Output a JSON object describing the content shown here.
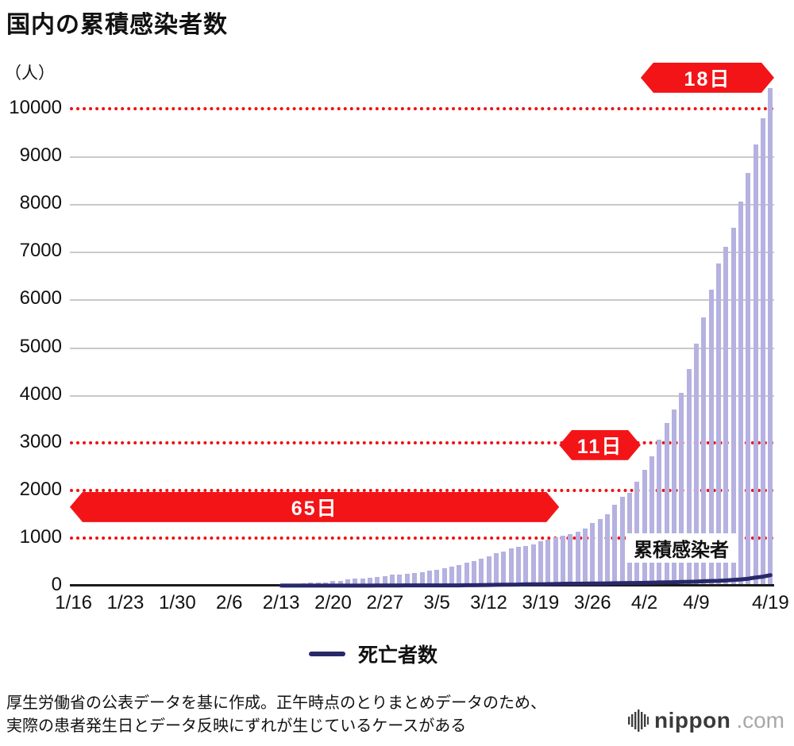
{
  "title": "国内の累積感染者数",
  "y_unit": "（人）",
  "bar_series_label": "累積感染者",
  "legend": {
    "deaths": "死亡者数"
  },
  "footer_lines": [
    "厚生労働省の公表データを基に作成。正午時点のとりまとめデータのため、",
    "実際の患者発生日とデータ反映にずれが生じているケースがある"
  ],
  "logo": {
    "name": "nippon",
    "tld": ".com"
  },
  "colors": {
    "bar": "#b5b1e0",
    "deaths_line": "#28286a",
    "red_accent": "#ee1111",
    "grid": "#c9c9c9",
    "axis": "#1a1a1a"
  },
  "chart_data": {
    "type": "bar",
    "title": "国内の累積感染者数",
    "ylabel": "（人）",
    "ylim": [
      0,
      10500
    ],
    "y_ticks": [
      0,
      1000,
      2000,
      3000,
      4000,
      5000,
      6000,
      7000,
      8000,
      9000,
      10000
    ],
    "x_ticks": [
      {
        "label": "1/16",
        "index": 0
      },
      {
        "label": "1/23",
        "index": 7
      },
      {
        "label": "1/30",
        "index": 14
      },
      {
        "label": "2/6",
        "index": 21
      },
      {
        "label": "2/13",
        "index": 28
      },
      {
        "label": "2/20",
        "index": 35
      },
      {
        "label": "2/27",
        "index": 42
      },
      {
        "label": "3/5",
        "index": 49
      },
      {
        "label": "3/12",
        "index": 56
      },
      {
        "label": "3/19",
        "index": 63
      },
      {
        "label": "3/26",
        "index": 70
      },
      {
        "label": "4/2",
        "index": 77
      },
      {
        "label": "4/9",
        "index": 84
      },
      {
        "label": "4/19",
        "index": 94
      }
    ],
    "solid_gridlines": [
      4000,
      5000,
      6000,
      7000,
      8000,
      9000
    ],
    "red_dotted_lines": [
      1000,
      2000,
      3000,
      10000
    ],
    "x": [
      "1/16",
      "1/17",
      "1/18",
      "1/19",
      "1/20",
      "1/21",
      "1/22",
      "1/23",
      "1/24",
      "1/25",
      "1/26",
      "1/27",
      "1/28",
      "1/29",
      "1/30",
      "1/31",
      "2/1",
      "2/2",
      "2/3",
      "2/4",
      "2/5",
      "2/6",
      "2/7",
      "2/8",
      "2/9",
      "2/10",
      "2/11",
      "2/12",
      "2/13",
      "2/14",
      "2/15",
      "2/16",
      "2/17",
      "2/18",
      "2/19",
      "2/20",
      "2/21",
      "2/22",
      "2/23",
      "2/24",
      "2/25",
      "2/26",
      "2/27",
      "2/28",
      "2/29",
      "3/1",
      "3/2",
      "3/3",
      "3/4",
      "3/5",
      "3/6",
      "3/7",
      "3/8",
      "3/9",
      "3/10",
      "3/11",
      "3/12",
      "3/13",
      "3/14",
      "3/15",
      "3/16",
      "3/17",
      "3/18",
      "3/19",
      "3/20",
      "3/21",
      "3/22",
      "3/23",
      "3/24",
      "3/25",
      "3/26",
      "3/27",
      "3/28",
      "3/29",
      "3/30",
      "3/31",
      "4/1",
      "4/2",
      "4/3",
      "4/4",
      "4/5",
      "4/6",
      "4/7",
      "4/8",
      "4/9",
      "4/10",
      "4/11",
      "4/12",
      "4/13",
      "4/14",
      "4/15",
      "4/16",
      "4/17",
      "4/18",
      "4/19"
    ],
    "series": [
      {
        "name": "累積感染者",
        "type": "bar",
        "values": [
          1,
          1,
          1,
          1,
          1,
          1,
          1,
          1,
          2,
          3,
          4,
          4,
          7,
          8,
          11,
          15,
          17,
          20,
          20,
          23,
          23,
          25,
          25,
          25,
          26,
          26,
          28,
          28,
          32,
          38,
          41,
          53,
          59,
          65,
          73,
          94,
          105,
          132,
          144,
          156,
          164,
          186,
          207,
          226,
          241,
          254,
          268,
          284,
          308,
          327,
          360,
          407,
          440,
          480,
          514,
          568,
          620,
          675,
          716,
          780,
          814,
          829,
          873,
          924,
          963,
          1007,
          1046,
          1089,
          1128,
          1193,
          1307,
          1402,
          1499,
          1693,
          1866,
          1953,
          2178,
          2430,
          2720,
          3060,
          3410,
          3700,
          4050,
          4550,
          5080,
          5630,
          6210,
          6750,
          7100,
          7500,
          8050,
          8650,
          9250,
          9800,
          10430
        ]
      },
      {
        "name": "死亡者数",
        "type": "line",
        "values": [
          0,
          0,
          0,
          0,
          0,
          0,
          0,
          0,
          0,
          0,
          0,
          0,
          0,
          0,
          0,
          0,
          0,
          0,
          0,
          0,
          0,
          0,
          0,
          0,
          0,
          0,
          0,
          0,
          1,
          1,
          1,
          1,
          1,
          1,
          1,
          1,
          1,
          1,
          1,
          1,
          2,
          4,
          4,
          5,
          5,
          6,
          6,
          6,
          6,
          6,
          6,
          6,
          7,
          10,
          10,
          12,
          15,
          19,
          22,
          22,
          24,
          28,
          29,
          29,
          33,
          35,
          40,
          41,
          42,
          43,
          45,
          46,
          49,
          52,
          54,
          56,
          57,
          60,
          63,
          69,
          70,
          73,
          80,
          81,
          85,
          94,
          98,
          102,
          109,
          119,
          131,
          146,
          171,
          190,
          222
        ]
      }
    ],
    "annotations": [
      {
        "label": "65日",
        "from": "1/16",
        "to": "3/21",
        "from_index": 0,
        "to_index": 65,
        "y": 1650
      },
      {
        "label": "11日",
        "from": "3/22",
        "to": "4/1",
        "from_index": 66,
        "to_index": 76,
        "y": 2950
      },
      {
        "label": "18日",
        "from": "4/2",
        "to": "4/19",
        "from_index": 77,
        "to_index": 94,
        "y": 10650
      }
    ]
  }
}
